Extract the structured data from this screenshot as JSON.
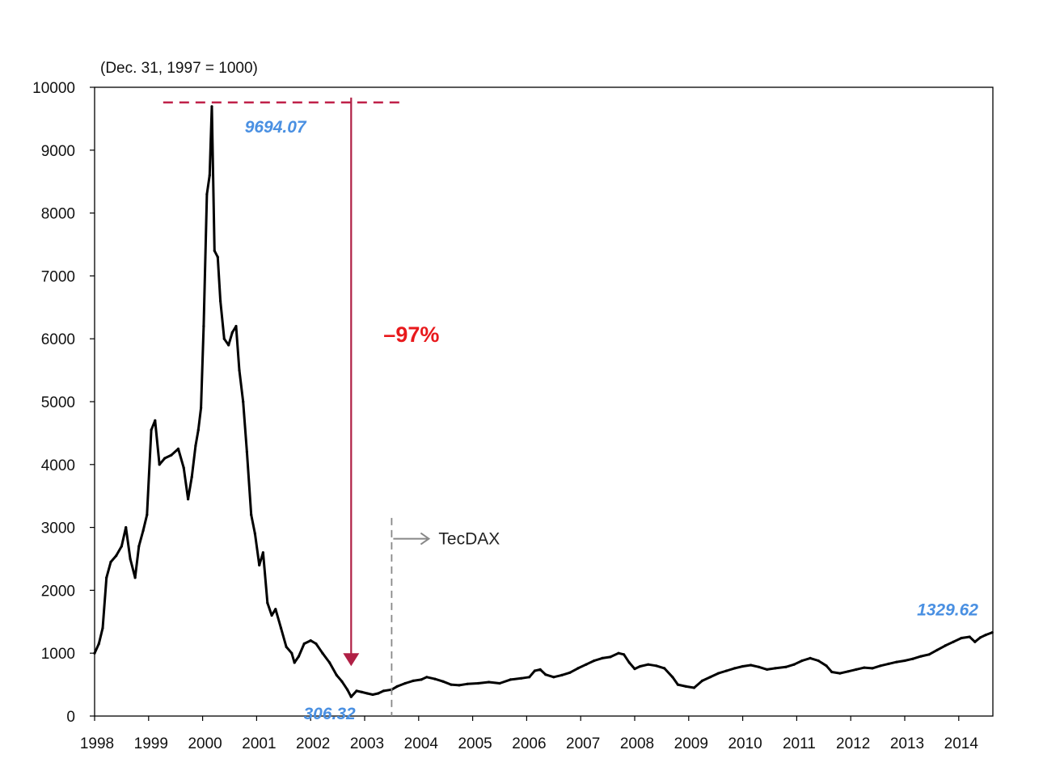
{
  "colors": {
    "series": "#000000",
    "value_label": "#4a90e2",
    "drop_label": "#e8191c",
    "peak_line": "#c0224a",
    "drop_arrow": "#b02045",
    "marker": "#888888"
  },
  "chart_data": {
    "type": "line",
    "title": "",
    "base_note": "(Dec. 31, 1997 = 1000)",
    "xlabel": "",
    "ylabel": "",
    "xlim": [
      1998.0,
      2014.65
    ],
    "ylim": [
      0,
      10000
    ],
    "grid": false,
    "legend": "none",
    "x_ticks": [
      "1998",
      "1999",
      "2000",
      "2001",
      "2002",
      "2003",
      "2004",
      "2005",
      "2006",
      "2007",
      "2008",
      "2009",
      "2010",
      "2011",
      "2012",
      "2013",
      "2014"
    ],
    "y_ticks": [
      "0",
      "1000",
      "2000",
      "3000",
      "4000",
      "5000",
      "6000",
      "7000",
      "8000",
      "9000",
      "10000"
    ],
    "series": [
      {
        "points": [
          [
            1998.0,
            1000
          ],
          [
            1998.08,
            1150
          ],
          [
            1998.15,
            1400
          ],
          [
            1998.22,
            2200
          ],
          [
            1998.3,
            2450
          ],
          [
            1998.4,
            2550
          ],
          [
            1998.5,
            2700
          ],
          [
            1998.58,
            3000
          ],
          [
            1998.66,
            2500
          ],
          [
            1998.75,
            2200
          ],
          [
            1998.82,
            2700
          ],
          [
            1998.9,
            2950
          ],
          [
            1998.97,
            3200
          ],
          [
            1999.05,
            4550
          ],
          [
            1999.12,
            4700
          ],
          [
            1999.2,
            4000
          ],
          [
            1999.3,
            4100
          ],
          [
            1999.42,
            4150
          ],
          [
            1999.55,
            4250
          ],
          [
            1999.65,
            3950
          ],
          [
            1999.73,
            3450
          ],
          [
            1999.8,
            3800
          ],
          [
            1999.87,
            4300
          ],
          [
            1999.92,
            4550
          ],
          [
            1999.97,
            4900
          ],
          [
            2000.02,
            6200
          ],
          [
            2000.08,
            8300
          ],
          [
            2000.13,
            8600
          ],
          [
            2000.17,
            9694.07
          ],
          [
            2000.22,
            7400
          ],
          [
            2000.28,
            7300
          ],
          [
            2000.33,
            6600
          ],
          [
            2000.4,
            6000
          ],
          [
            2000.48,
            5900
          ],
          [
            2000.55,
            6100
          ],
          [
            2000.62,
            6200
          ],
          [
            2000.68,
            5500
          ],
          [
            2000.75,
            5000
          ],
          [
            2000.82,
            4200
          ],
          [
            2000.9,
            3200
          ],
          [
            2000.97,
            2900
          ],
          [
            2001.05,
            2400
          ],
          [
            2001.12,
            2600
          ],
          [
            2001.2,
            1800
          ],
          [
            2001.28,
            1600
          ],
          [
            2001.35,
            1700
          ],
          [
            2001.45,
            1400
          ],
          [
            2001.55,
            1100
          ],
          [
            2001.65,
            1000
          ],
          [
            2001.7,
            850
          ],
          [
            2001.78,
            950
          ],
          [
            2001.88,
            1150
          ],
          [
            2002.0,
            1200
          ],
          [
            2002.1,
            1150
          ],
          [
            2002.22,
            1000
          ],
          [
            2002.35,
            850
          ],
          [
            2002.48,
            650
          ],
          [
            2002.58,
            550
          ],
          [
            2002.68,
            420
          ],
          [
            2002.75,
            306.32
          ],
          [
            2002.85,
            400
          ],
          [
            2002.95,
            380
          ],
          [
            2003.05,
            360
          ],
          [
            2003.15,
            340
          ],
          [
            2003.25,
            360
          ],
          [
            2003.35,
            400
          ],
          [
            2003.5,
            420
          ],
          [
            2003.6,
            470
          ],
          [
            2003.75,
            520
          ],
          [
            2003.9,
            560
          ],
          [
            2004.05,
            580
          ],
          [
            2004.15,
            620
          ],
          [
            2004.3,
            590
          ],
          [
            2004.45,
            550
          ],
          [
            2004.6,
            500
          ],
          [
            2004.75,
            490
          ],
          [
            2004.9,
            510
          ],
          [
            2005.1,
            520
          ],
          [
            2005.3,
            540
          ],
          [
            2005.5,
            520
          ],
          [
            2005.7,
            580
          ],
          [
            2005.9,
            600
          ],
          [
            2006.05,
            620
          ],
          [
            2006.15,
            720
          ],
          [
            2006.25,
            740
          ],
          [
            2006.35,
            660
          ],
          [
            2006.5,
            620
          ],
          [
            2006.65,
            650
          ],
          [
            2006.8,
            690
          ],
          [
            2006.95,
            760
          ],
          [
            2007.1,
            820
          ],
          [
            2007.25,
            880
          ],
          [
            2007.4,
            920
          ],
          [
            2007.55,
            940
          ],
          [
            2007.7,
            1000
          ],
          [
            2007.8,
            980
          ],
          [
            2007.9,
            850
          ],
          [
            2008.0,
            750
          ],
          [
            2008.1,
            790
          ],
          [
            2008.25,
            820
          ],
          [
            2008.4,
            800
          ],
          [
            2008.55,
            760
          ],
          [
            2008.7,
            620
          ],
          [
            2008.8,
            500
          ],
          [
            2008.95,
            470
          ],
          [
            2009.1,
            450
          ],
          [
            2009.25,
            560
          ],
          [
            2009.4,
            620
          ],
          [
            2009.55,
            680
          ],
          [
            2009.7,
            720
          ],
          [
            2009.85,
            760
          ],
          [
            2010.0,
            790
          ],
          [
            2010.15,
            810
          ],
          [
            2010.3,
            780
          ],
          [
            2010.45,
            740
          ],
          [
            2010.6,
            760
          ],
          [
            2010.8,
            780
          ],
          [
            2010.95,
            820
          ],
          [
            2011.1,
            880
          ],
          [
            2011.25,
            920
          ],
          [
            2011.4,
            880
          ],
          [
            2011.55,
            800
          ],
          [
            2011.65,
            700
          ],
          [
            2011.8,
            680
          ],
          [
            2011.95,
            710
          ],
          [
            2012.1,
            740
          ],
          [
            2012.25,
            770
          ],
          [
            2012.4,
            760
          ],
          [
            2012.55,
            800
          ],
          [
            2012.7,
            830
          ],
          [
            2012.85,
            860
          ],
          [
            2013.0,
            880
          ],
          [
            2013.15,
            910
          ],
          [
            2013.3,
            950
          ],
          [
            2013.45,
            980
          ],
          [
            2013.6,
            1050
          ],
          [
            2013.75,
            1120
          ],
          [
            2013.9,
            1180
          ],
          [
            2014.05,
            1240
          ],
          [
            2014.2,
            1260
          ],
          [
            2014.3,
            1180
          ],
          [
            2014.4,
            1250
          ],
          [
            2014.5,
            1290
          ],
          [
            2014.62,
            1329.62
          ]
        ]
      }
    ],
    "annotations": {
      "peak_label": "9694.07",
      "trough_label": "306.32",
      "last_label": "1329.62",
      "drop_label": "–97%",
      "marker_label": "TecDAX",
      "peak_value": 9694.07,
      "trough_value": 306.32,
      "last_value": 1329.62,
      "marker_year": 2003.5,
      "drop_arrow_year": 2002.75
    }
  }
}
